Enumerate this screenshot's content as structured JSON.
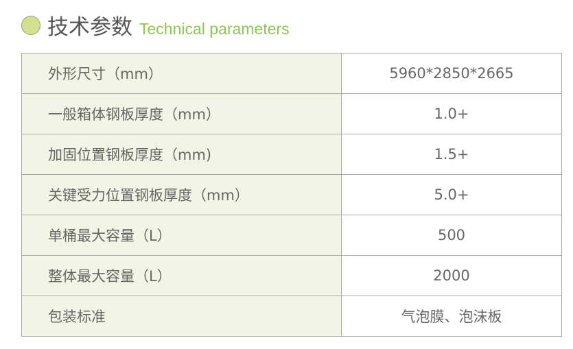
{
  "header": {
    "title_cn": "技术参数",
    "title_en": "Technical parameters",
    "accent": "#8dc84e"
  },
  "rows": [
    {
      "label": "外形尺寸（mm）",
      "value": "5960*2850*2665"
    },
    {
      "label": "一般箱体钢板厚度（mm）",
      "value": "1.0+"
    },
    {
      "label": "加固位置钢板厚度（mm)",
      "value": "1.5+"
    },
    {
      "label": "关键受力位置钢板厚度（mm）",
      "value": "5.0+"
    },
    {
      "label": "单桶最大容量（L）",
      "value": "500"
    },
    {
      "label": "整体最大容量（L）",
      "value": "2000"
    },
    {
      "label": "包装标准",
      "value": "气泡膜、泡沫板"
    }
  ]
}
